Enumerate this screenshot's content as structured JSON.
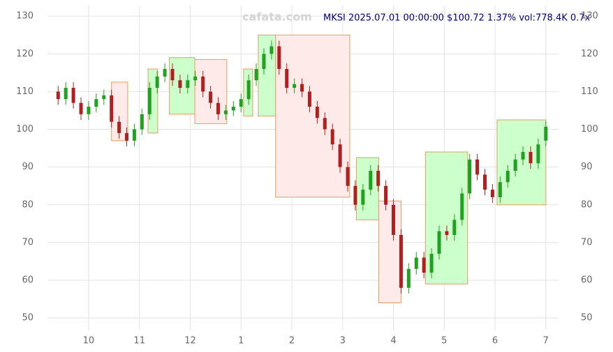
{
  "chart_data": {
    "type": "candlestick",
    "title": "MKSI 2025.07.01 00:00:00 $100.72 1.37% vol:778.4K 0.7x",
    "watermark": "cafata.com",
    "xlim": [
      -0.81,
      9.25
    ],
    "xticks": [
      {
        "value": 0,
        "label": "10"
      },
      {
        "value": 1,
        "label": "11"
      },
      {
        "value": 2,
        "label": "12"
      },
      {
        "value": 3,
        "label": "1"
      },
      {
        "value": 4,
        "label": "2"
      },
      {
        "value": 5,
        "label": "3"
      },
      {
        "value": 6,
        "label": "4"
      },
      {
        "value": 7,
        "label": "5"
      },
      {
        "value": 8,
        "label": "6"
      },
      {
        "value": 9,
        "label": "7"
      }
    ],
    "ylim": [
      46.7,
      132.8
    ],
    "yticks": [
      50,
      60,
      70,
      80,
      90,
      100,
      110,
      120,
      130
    ],
    "grid": true,
    "up_color": "#22a022",
    "down_color": "#b02020",
    "x": [
      -0.6,
      -0.45,
      -0.3,
      -0.15,
      0,
      0.15,
      0.3,
      0.45,
      0.6,
      0.75,
      0.9,
      1.05,
      1.2,
      1.35,
      1.5,
      1.65,
      1.8,
      1.95,
      2.1,
      2.25,
      2.4,
      2.55,
      2.7,
      2.85,
      3.0,
      3.15,
      3.3,
      3.45,
      3.6,
      3.75,
      3.9,
      4.05,
      4.2,
      4.35,
      4.5,
      4.65,
      4.8,
      4.95,
      5.1,
      5.25,
      5.4,
      5.55,
      5.7,
      5.85,
      6.0,
      6.15,
      6.3,
      6.45,
      6.6,
      6.75,
      6.9,
      7.05,
      7.2,
      7.35,
      7.5,
      7.65,
      7.8,
      7.95,
      8.1,
      8.25,
      8.4,
      8.55,
      8.7,
      8.85,
      9.0
    ],
    "open": [
      110,
      108,
      111,
      107,
      104,
      106,
      108,
      109,
      102,
      99,
      97,
      100,
      104,
      111,
      114,
      116,
      113,
      111,
      113,
      114,
      110,
      107,
      104,
      105,
      106,
      108,
      113,
      116,
      120,
      122,
      116,
      111,
      112,
      110,
      106,
      103,
      100,
      96,
      90,
      85,
      80,
      84,
      89,
      85,
      80,
      72,
      58,
      63,
      66,
      62,
      67,
      73,
      72,
      76,
      83,
      92,
      88,
      84,
      82,
      86,
      89,
      92,
      94,
      91,
      97
    ],
    "high": [
      111.5,
      112.5,
      112.5,
      108.5,
      107.5,
      109.5,
      110.5,
      110.5,
      103.5,
      100.5,
      101.5,
      105.5,
      112.5,
      115.5,
      117.5,
      117.5,
      114.5,
      114.5,
      115.5,
      115.5,
      111.5,
      108.5,
      106.5,
      107.5,
      109.5,
      114.5,
      117.5,
      121.5,
      123.5,
      123.5,
      117.5,
      113.5,
      113.5,
      111.5,
      107.5,
      104.5,
      101.5,
      97.5,
      91.5,
      86.5,
      85.5,
      90.5,
      90.5,
      86.5,
      81.5,
      73.5,
      64.5,
      67.5,
      67.5,
      68.5,
      74.5,
      74.5,
      77.5,
      84.5,
      93.5,
      93.5,
      89.5,
      85.5,
      87.5,
      90.5,
      93.5,
      95.5,
      95.5,
      97.5,
      102.2
    ],
    "low": [
      106.5,
      106.5,
      105.5,
      102.5,
      102.5,
      104.5,
      106.5,
      100.5,
      97.5,
      95.5,
      95.5,
      98.5,
      102.5,
      109.5,
      112.5,
      111.5,
      109.5,
      109.5,
      111.5,
      108.5,
      105.5,
      102.5,
      102.5,
      103.5,
      104.5,
      106.5,
      111.5,
      114.5,
      118.5,
      114.5,
      109.5,
      109.5,
      108.5,
      104.5,
      101.5,
      98.5,
      94.5,
      88.5,
      83.5,
      78.5,
      78.5,
      82.5,
      83.5,
      78.5,
      70.5,
      56.5,
      56.5,
      61.5,
      60.5,
      60.5,
      65.5,
      70.5,
      70.5,
      74.5,
      81.5,
      86.5,
      82.5,
      80.5,
      80.5,
      84.5,
      87.5,
      90.5,
      89.5,
      89.5,
      95.5
    ],
    "close": [
      108,
      111,
      107,
      104,
      106,
      108,
      109,
      102,
      99,
      97,
      100,
      104,
      111,
      114,
      116,
      113,
      111,
      113,
      114,
      110,
      107,
      104,
      105,
      106,
      108,
      113,
      116,
      120,
      122,
      116,
      111,
      112,
      110,
      106,
      103,
      100,
      96,
      90,
      85,
      80,
      84,
      89,
      85,
      80,
      72,
      58,
      63,
      66,
      62,
      67,
      73,
      72,
      76,
      83,
      92,
      88,
      84,
      82,
      86,
      89,
      92,
      94,
      91,
      96,
      100.7
    ],
    "boxes": [
      {
        "x": [
          0.45,
          0.77
        ],
        "y": [
          97,
          112.5
        ],
        "color": "#ffeaea"
      },
      {
        "x": [
          1.17,
          1.36
        ],
        "y": [
          99,
          116
        ],
        "color": "#ccffcc"
      },
      {
        "x": [
          1.59,
          2.09
        ],
        "y": [
          104,
          119
        ],
        "color": "#ccffcc"
      },
      {
        "x": [
          2.09,
          2.72
        ],
        "y": [
          101.5,
          118.5
        ],
        "color": "#ffeaea"
      },
      {
        "x": [
          3.05,
          3.23
        ],
        "y": [
          103.5,
          116
        ],
        "color": "#ccffcc"
      },
      {
        "x": [
          3.34,
          3.68
        ],
        "y": [
          103.5,
          125
        ],
        "color": "#ccffcc"
      },
      {
        "x": [
          3.68,
          5.14
        ],
        "y": [
          82,
          125
        ],
        "color": "#ffeaea"
      },
      {
        "x": [
          5.27,
          5.71
        ],
        "y": [
          76,
          92.5
        ],
        "color": "#ccffcc"
      },
      {
        "x": [
          5.71,
          6.15
        ],
        "y": [
          54,
          81
        ],
        "color": "#ffeaea"
      },
      {
        "x": [
          6.63,
          7.46
        ],
        "y": [
          59,
          94
        ],
        "color": "#ccffcc"
      },
      {
        "x": [
          8.04,
          9.0
        ],
        "y": [
          80,
          102.5
        ],
        "color": "#ccffcc"
      }
    ]
  }
}
